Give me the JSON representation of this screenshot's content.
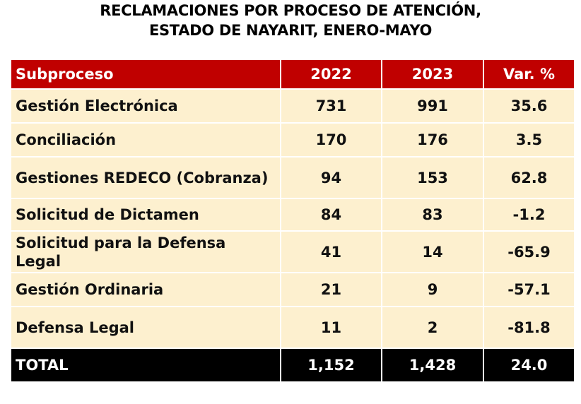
{
  "title": {
    "line1": "RECLAMACIONES POR PROCESO DE ATENCIÓN,",
    "line2": "ESTADO DE NAYARIT, ENERO-MAYO"
  },
  "colors": {
    "header_bg": "#c00000",
    "cell_bg": "#fdf0cf",
    "total_bg": "#000000",
    "increase": "#e8121b",
    "decrease": "#1aa34a"
  },
  "table": {
    "headers": [
      "Subproceso",
      "2022",
      "2023",
      "Var. %"
    ],
    "rows": [
      {
        "label": "Gestión Electrónica",
        "y2022": "731",
        "y2023": "991",
        "var": "35.6"
      },
      {
        "label": "Conciliación",
        "y2022": "170",
        "y2023": "176",
        "var": "3.5"
      },
      {
        "label": "Gestiones REDECO (Cobranza)",
        "y2022": "94",
        "y2023": "153",
        "var": "62.8"
      },
      {
        "label": "Solicitud de Dictamen",
        "y2022": "84",
        "y2023": "83",
        "var": "-1.2"
      },
      {
        "label": "Solicitud para la Defensa Legal",
        "y2022": "41",
        "y2023": "14",
        "var": "-65.9"
      },
      {
        "label": "Gestión Ordinaria",
        "y2022": "21",
        "y2023": "9",
        "var": "-57.1"
      },
      {
        "label": "Defensa Legal",
        "y2022": "11",
        "y2023": "2",
        "var": "-81.8"
      }
    ],
    "total": {
      "label": "TOTAL",
      "y2022": "1,152",
      "y2023": "1,428",
      "var": "24.0"
    }
  }
}
